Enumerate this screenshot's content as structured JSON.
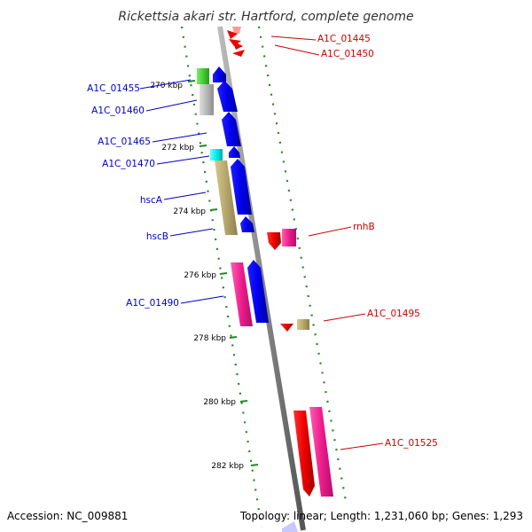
{
  "title": "Rickettsia akari str. Hartford, complete genome",
  "footer": {
    "accession": "Accession: NC_009881",
    "topology": "Topology: linear; Length: 1,231,060 bp; Genes: 1,293"
  },
  "kbp_labels": [
    "270 kbp",
    "272 kbp",
    "274 kbp",
    "276 kbp",
    "278 kbp",
    "280 kbp",
    "282 kbp"
  ],
  "genes_left": [
    "A1C_01455",
    "A1C_01460",
    "A1C_01465",
    "A1C_01470",
    "hscA",
    "hscB",
    "A1C_01490"
  ],
  "genes_right": [
    "A1C_01445",
    "A1C_01450",
    "rnhB",
    "A1C_01495",
    "A1C_01525"
  ],
  "colors": {
    "blue": "#0000ee",
    "red": "#ee0000",
    "pink": "#ee1b8c",
    "olive": "#b5a66b",
    "gray": "#b0b0b0",
    "green": "#44cc33",
    "cyan": "#00eeee",
    "backbone": "#8a8a8a",
    "tick": "#228822"
  }
}
